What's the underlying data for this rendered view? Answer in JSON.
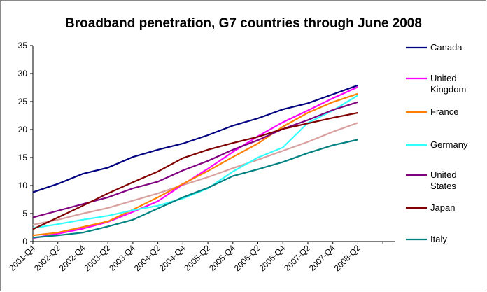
{
  "chart_data": {
    "type": "line",
    "title": "Broadband penetration, G7 countries through June 2008",
    "categories": [
      "2001-Q4",
      "2002-Q2",
      "2002-Q4",
      "2003-Q2",
      "2003-Q4",
      "2004-Q2",
      "2004-Q4",
      "2005-Q2",
      "2005-Q4",
      "2006-Q2",
      "2006-Q4",
      "2007-Q2",
      "2007-Q4",
      "2008-Q2",
      null
    ],
    "ylim": [
      0,
      35
    ],
    "yticks": [
      0,
      5,
      10,
      15,
      20,
      25,
      30,
      35
    ],
    "grid": false,
    "legend": "right",
    "series": [
      {
        "color": "#d9a0a0",
        "values": [
          3.0,
          3.9,
          5.0,
          6.0,
          7.3,
          8.6,
          10.1,
          11.5,
          13.1,
          14.6,
          16.2,
          17.8,
          19.6,
          21.2,
          null
        ]
      },
      {
        "name": "Canada",
        "color": "#000080",
        "values": [
          8.8,
          10.3,
          12.1,
          13.2,
          15.1,
          16.4,
          17.5,
          19.0,
          20.7,
          22.0,
          23.6,
          24.7,
          26.3,
          27.9,
          null
        ]
      },
      {
        "name": "United Kingdom",
        "color": "#ff00ff",
        "values": [
          0.6,
          1.4,
          2.3,
          3.5,
          5.3,
          7.2,
          10.2,
          13.0,
          16.0,
          18.8,
          21.3,
          23.4,
          25.6,
          27.6,
          null
        ]
      },
      {
        "name": "France",
        "color": "#ff8000",
        "values": [
          1.1,
          1.6,
          2.6,
          3.6,
          5.7,
          7.9,
          10.3,
          12.6,
          15.1,
          17.5,
          20.5,
          23.0,
          24.9,
          26.4,
          null
        ]
      },
      {
        "name": "Germany",
        "color": "#33ffff",
        "values": [
          2.4,
          3.1,
          3.9,
          4.6,
          5.6,
          6.4,
          7.7,
          9.5,
          12.5,
          15.0,
          16.8,
          21.2,
          23.4,
          26.1,
          null
        ]
      },
      {
        "name": "United States",
        "color": "#800080",
        "values": [
          4.3,
          5.5,
          6.7,
          7.9,
          9.5,
          10.7,
          12.7,
          14.4,
          16.4,
          18.1,
          20.1,
          21.7,
          23.5,
          24.9,
          null
        ]
      },
      {
        "name": "Japan",
        "color": "#800000",
        "values": [
          2.2,
          4.3,
          6.4,
          8.6,
          10.6,
          12.5,
          14.9,
          16.4,
          17.6,
          18.7,
          20.1,
          21.1,
          22.1,
          23.0,
          null
        ]
      },
      {
        "name": "Italy",
        "color": "#008080",
        "values": [
          0.7,
          1.1,
          1.6,
          2.7,
          3.9,
          5.9,
          7.9,
          9.6,
          11.7,
          12.9,
          14.2,
          15.8,
          17.2,
          18.2,
          null
        ]
      }
    ]
  }
}
